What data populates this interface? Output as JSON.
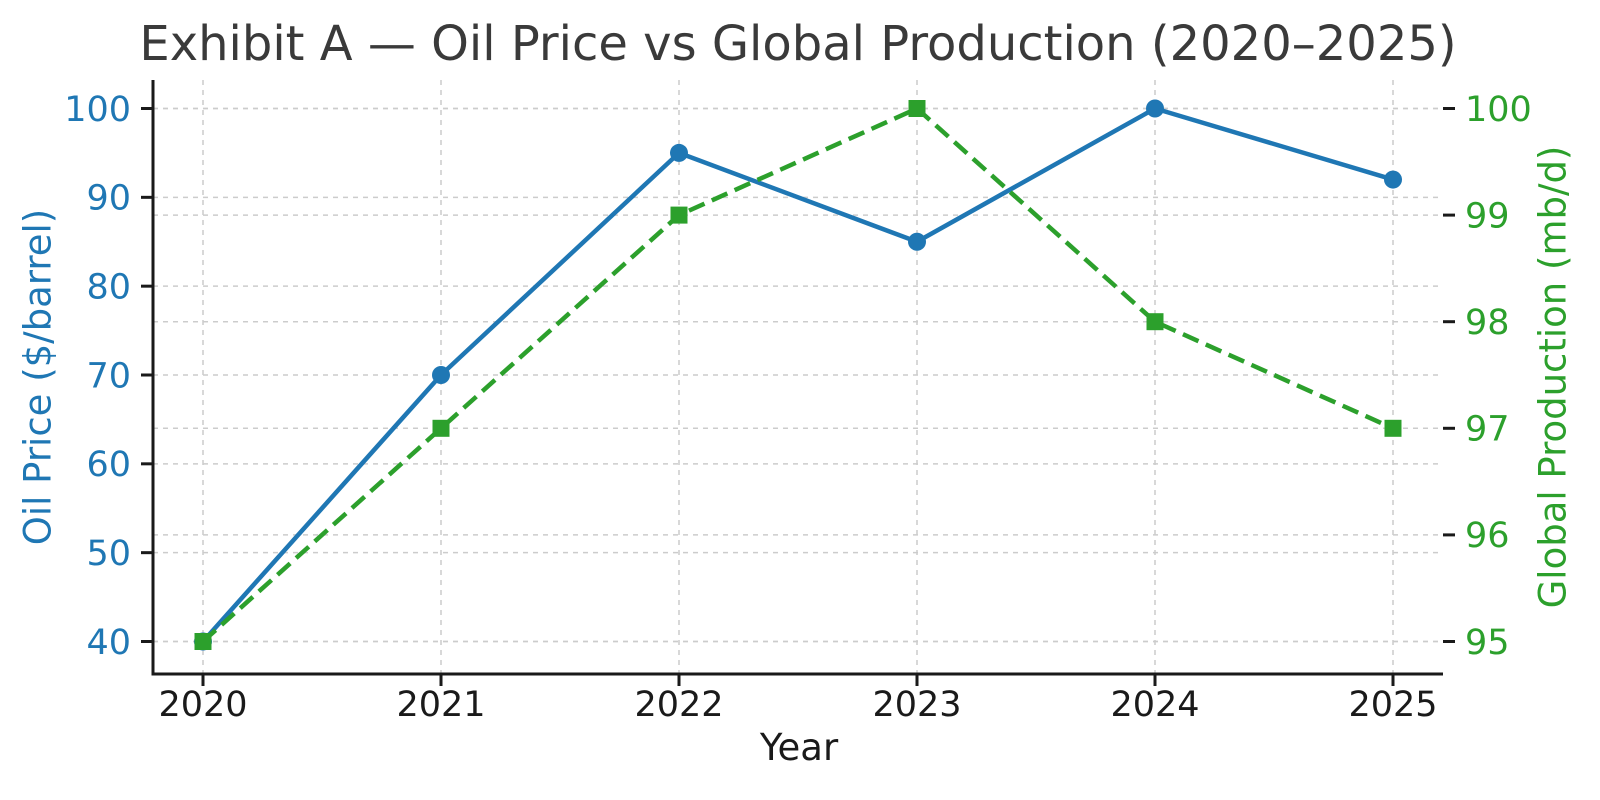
{
  "colors": {
    "oil_price": "#1f77b4",
    "production": "#2ca02c",
    "grid": "#cccccc",
    "axis": "#1a1a1a",
    "title": "#3a3a3a"
  },
  "chart_data": {
    "type": "line",
    "title": "Exhibit A — Oil Price vs Global Production (2020–2025)",
    "xlabel": "Year",
    "x": [
      2020,
      2021,
      2022,
      2023,
      2024,
      2025
    ],
    "x_tick_labels": [
      "2020",
      "2021",
      "2022",
      "2023",
      "2024",
      "2025"
    ],
    "series": [
      {
        "name": "Oil Price",
        "axis": "left",
        "color": "#1f77b4",
        "line_style": "solid",
        "marker": "circle",
        "values": [
          40,
          70,
          95,
          85,
          100,
          92
        ]
      },
      {
        "name": "Global Production",
        "axis": "right",
        "color": "#2ca02c",
        "line_style": "dashed",
        "marker": "square",
        "values": [
          95,
          97,
          99,
          100,
          98,
          97
        ]
      }
    ],
    "left_axis": {
      "label": "Oil Price ($/barrel)",
      "ticks": [
        40,
        50,
        60,
        70,
        80,
        90,
        100
      ],
      "range": [
        40,
        100
      ],
      "color": "#1f77b4"
    },
    "right_axis": {
      "label": "Global Production (mb/d)",
      "ticks": [
        95,
        96,
        97,
        98,
        99,
        100
      ],
      "range": [
        95,
        100
      ],
      "color": "#2ca02c"
    },
    "grid": true,
    "legend": "none"
  }
}
